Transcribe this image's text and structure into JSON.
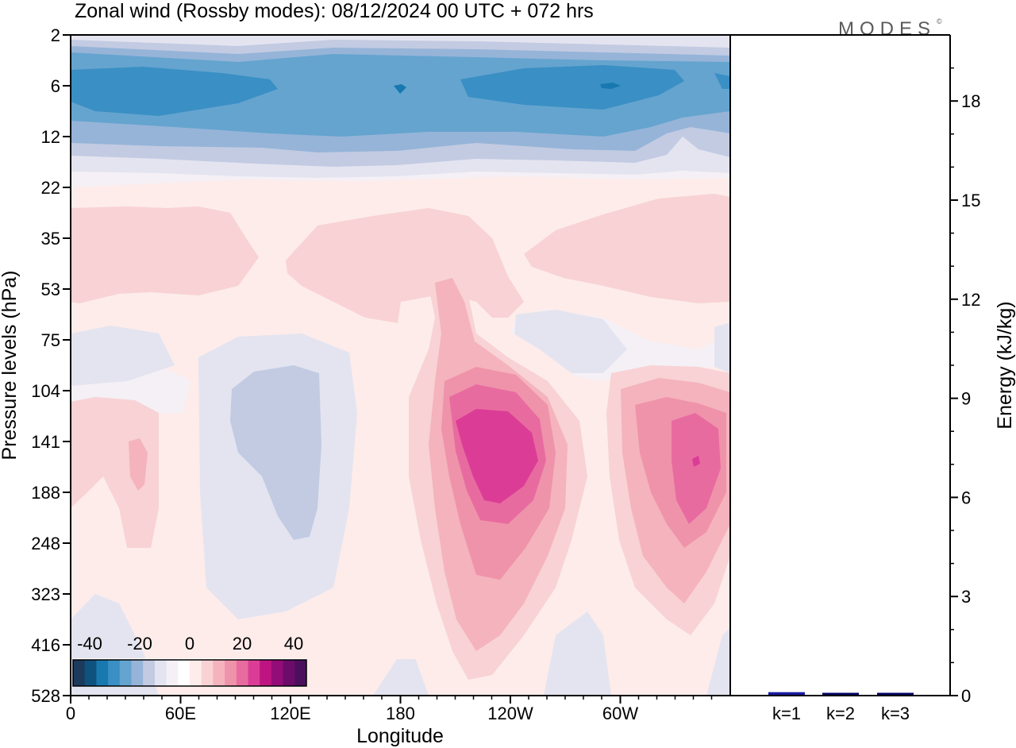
{
  "title": "Zonal wind (Rossby modes):  08/12/2024  00 UTC  + 072 hrs",
  "brand": "MODES",
  "brand_mark": "©",
  "chart_data": [
    {
      "type": "heatmap",
      "title": "Zonal wind (Rossby modes):  08/12/2024  00 UTC  + 072 hrs",
      "xlabel": "Longitude",
      "ylabel": "Pressure levels (hPa)",
      "x_ticks": [
        "0",
        "60E",
        "120E",
        "180",
        "120W",
        "60W"
      ],
      "y_ticks": [
        "2",
        "6",
        "12",
        "22",
        "35",
        "53",
        "75",
        "104",
        "141",
        "188",
        "248",
        "323",
        "416",
        "528"
      ],
      "y_scale": "log",
      "colorbar": {
        "labels": [
          "-40",
          "-20",
          "0",
          "20",
          "40"
        ],
        "colors": [
          "#1b3a5c",
          "#10527e",
          "#1878b0",
          "#3a8fc4",
          "#64a4cf",
          "#96b4d8",
          "#c2cbe2",
          "#e4e4f0",
          "#f4f0f6",
          "#ffffff",
          "#fdecea",
          "#f8d2d4",
          "#f4b3bd",
          "#ef93aa",
          "#e86ba0",
          "#db3d96",
          "#bd1481",
          "#930c77",
          "#6c0b6a",
          "#4c0f5e"
        ]
      },
      "features": [
        {
          "name": "easterly jet",
          "lon_range": [
            "0",
            "360"
          ],
          "level_hPa": 6,
          "value": -30
        },
        {
          "name": "westerly core",
          "lon_center": "120W",
          "level_hPa": 141,
          "value": 30
        },
        {
          "name": "westerly core",
          "lon_center": "20W",
          "level_hPa": 141,
          "value": 25
        },
        {
          "name": "easterly band",
          "lon_center": "120E",
          "level_hPa": 188,
          "value": -5
        }
      ]
    },
    {
      "type": "bar",
      "ylabel": "Energy (kJ/kg)",
      "categories": [
        "k=1",
        "k=2",
        "k=3"
      ],
      "values": [
        0.08,
        0.02,
        0.01
      ],
      "ylim": [
        0,
        20
      ],
      "y_ticks": [
        "0",
        "3",
        "6",
        "9",
        "12",
        "15",
        "18"
      ],
      "y_tick_values": [
        0,
        3,
        6,
        9,
        12,
        15,
        18
      ],
      "bar_colors": [
        "#1a1aa0",
        "#000066",
        "#000066"
      ]
    }
  ]
}
